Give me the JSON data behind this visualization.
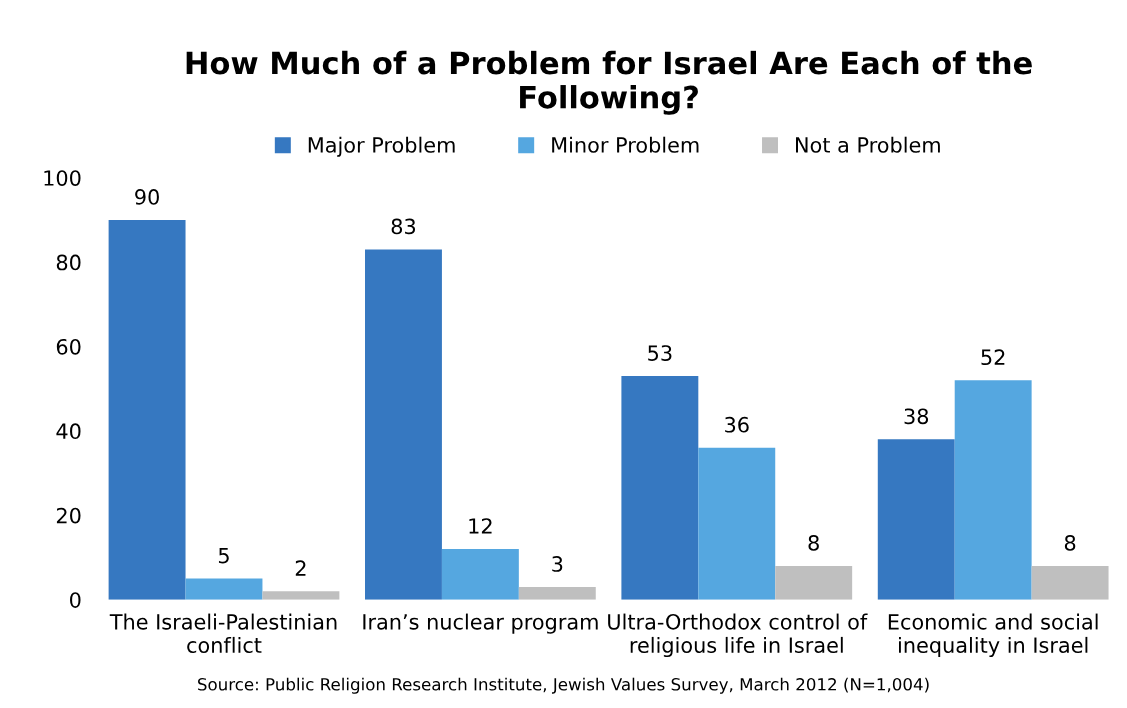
{
  "chart_data": {
    "type": "bar",
    "title": "How Much of a Problem for Israel Are Each of the\nFollowing?",
    "categories": [
      "The Israeli-Palestinian\nconflict",
      "Iran’s nuclear program",
      "Ultra-Orthodox control of\nreligious life in Israel",
      "Economic and social\ninequality in Israel"
    ],
    "series": [
      {
        "name": "Major Problem",
        "color": "#3678c1",
        "values": [
          90,
          83,
          53,
          38
        ]
      },
      {
        "name": "Minor Problem",
        "color": "#55a7e0",
        "values": [
          5,
          12,
          36,
          52
        ]
      },
      {
        "name": "Not a Problem",
        "color": "#bfbfbf",
        "values": [
          2,
          3,
          8,
          8
        ]
      }
    ],
    "ylim": [
      0,
      100
    ],
    "yticks": [
      0,
      20,
      40,
      60,
      80,
      100
    ],
    "data_labels": true,
    "legend": "top",
    "grid": false,
    "annotations": [
      "Source: Public Religion Research Institute, Jewish Values Survey, March 2012 (N=1,004)"
    ]
  }
}
